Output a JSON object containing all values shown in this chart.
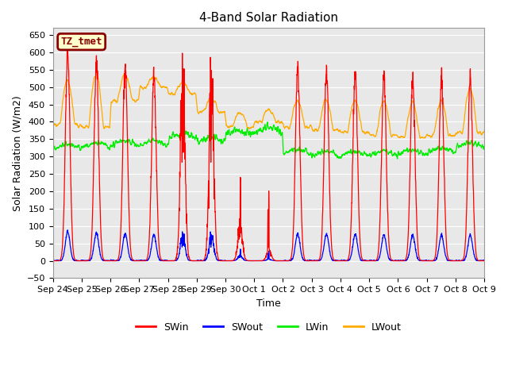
{
  "title": "4-Band Solar Radiation",
  "ylabel": "Solar Radiation (W/m2)",
  "xlabel": "Time",
  "ylim": [
    -50,
    670
  ],
  "yticks": [
    -50,
    0,
    50,
    100,
    150,
    200,
    250,
    300,
    350,
    400,
    450,
    500,
    550,
    600,
    650
  ],
  "bg_color": "#e8e8e8",
  "fig_color": "#ffffff",
  "grid_color": "#ffffff",
  "annotation_text": "TZ_tmet",
  "annotation_bg": "#ffffcc",
  "annotation_edge": "#8b0000",
  "annotation_text_color": "#8b0000",
  "colors": {
    "SWin": "#ff0000",
    "SWout": "#0000ff",
    "LWin": "#00ee00",
    "LWout": "#ffaa00"
  },
  "tick_labels": [
    "Sep 24",
    "Sep 25",
    "Sep 26",
    "Sep 27",
    "Sep 28",
    "Sep 29",
    "Sep 30",
    "Oct 1",
    "Oct 2",
    "Oct 3",
    "Oct 4",
    "Oct 5",
    "Oct 6",
    "Oct 7",
    "Oct 8",
    "Oct 9"
  ]
}
